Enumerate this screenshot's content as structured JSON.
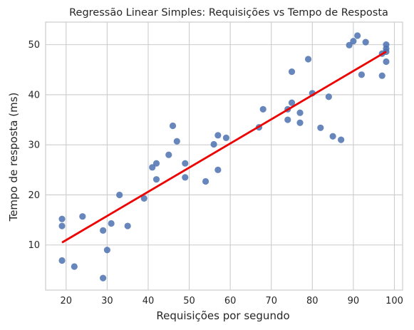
{
  "chart_data": {
    "type": "scatter",
    "title": "Regressão Linear Simples: Requisições vs Tempo de Resposta",
    "xlabel": "Requisições por segundo",
    "ylabel": "Tempo de resposta (ms)",
    "xlim": [
      15,
      102
    ],
    "ylim": [
      1,
      54.5
    ],
    "xticks": [
      20,
      30,
      40,
      50,
      60,
      70,
      80,
      90,
      100
    ],
    "yticks": [
      10,
      20,
      30,
      40,
      50
    ],
    "grid": true,
    "colors": {
      "points": "#4c72b0",
      "line": "#ee0000",
      "grid": "#cccccc",
      "frame": "#cccccc"
    },
    "points": [
      {
        "x": 19,
        "y": 15.2
      },
      {
        "x": 19,
        "y": 13.8
      },
      {
        "x": 19,
        "y": 6.9
      },
      {
        "x": 22,
        "y": 5.7
      },
      {
        "x": 24,
        "y": 15.7
      },
      {
        "x": 29,
        "y": 12.9
      },
      {
        "x": 29,
        "y": 3.4
      },
      {
        "x": 30,
        "y": 9.0
      },
      {
        "x": 31,
        "y": 14.3
      },
      {
        "x": 33,
        "y": 20.0
      },
      {
        "x": 35,
        "y": 13.8
      },
      {
        "x": 39,
        "y": 19.3
      },
      {
        "x": 41,
        "y": 25.5
      },
      {
        "x": 42,
        "y": 26.3
      },
      {
        "x": 42,
        "y": 23.1
      },
      {
        "x": 45,
        "y": 28.0
      },
      {
        "x": 46,
        "y": 33.8
      },
      {
        "x": 47,
        "y": 30.7
      },
      {
        "x": 49,
        "y": 26.3
      },
      {
        "x": 49,
        "y": 23.5
      },
      {
        "x": 54,
        "y": 22.7
      },
      {
        "x": 56,
        "y": 30.1
      },
      {
        "x": 57,
        "y": 31.9
      },
      {
        "x": 57,
        "y": 25.0
      },
      {
        "x": 59,
        "y": 31.4
      },
      {
        "x": 67,
        "y": 33.5
      },
      {
        "x": 68,
        "y": 37.1
      },
      {
        "x": 74,
        "y": 37.1
      },
      {
        "x": 74,
        "y": 35.0
      },
      {
        "x": 75,
        "y": 44.6
      },
      {
        "x": 75,
        "y": 38.4
      },
      {
        "x": 77,
        "y": 36.4
      },
      {
        "x": 77,
        "y": 34.4
      },
      {
        "x": 79,
        "y": 47.1
      },
      {
        "x": 80,
        "y": 40.3
      },
      {
        "x": 82,
        "y": 33.4
      },
      {
        "x": 84,
        "y": 39.6
      },
      {
        "x": 85,
        "y": 31.7
      },
      {
        "x": 87,
        "y": 31.0
      },
      {
        "x": 89,
        "y": 49.9
      },
      {
        "x": 90,
        "y": 50.7
      },
      {
        "x": 91,
        "y": 51.8
      },
      {
        "x": 92,
        "y": 44.0
      },
      {
        "x": 93,
        "y": 50.5
      },
      {
        "x": 97,
        "y": 43.8
      },
      {
        "x": 97,
        "y": 48.2
      },
      {
        "x": 98,
        "y": 50.0
      },
      {
        "x": 98,
        "y": 49.2
      },
      {
        "x": 98,
        "y": 48.6
      },
      {
        "x": 98,
        "y": 46.6
      }
    ],
    "regression_line": {
      "x": [
        19,
        98
      ],
      "y": [
        10.5,
        48.6
      ]
    }
  }
}
